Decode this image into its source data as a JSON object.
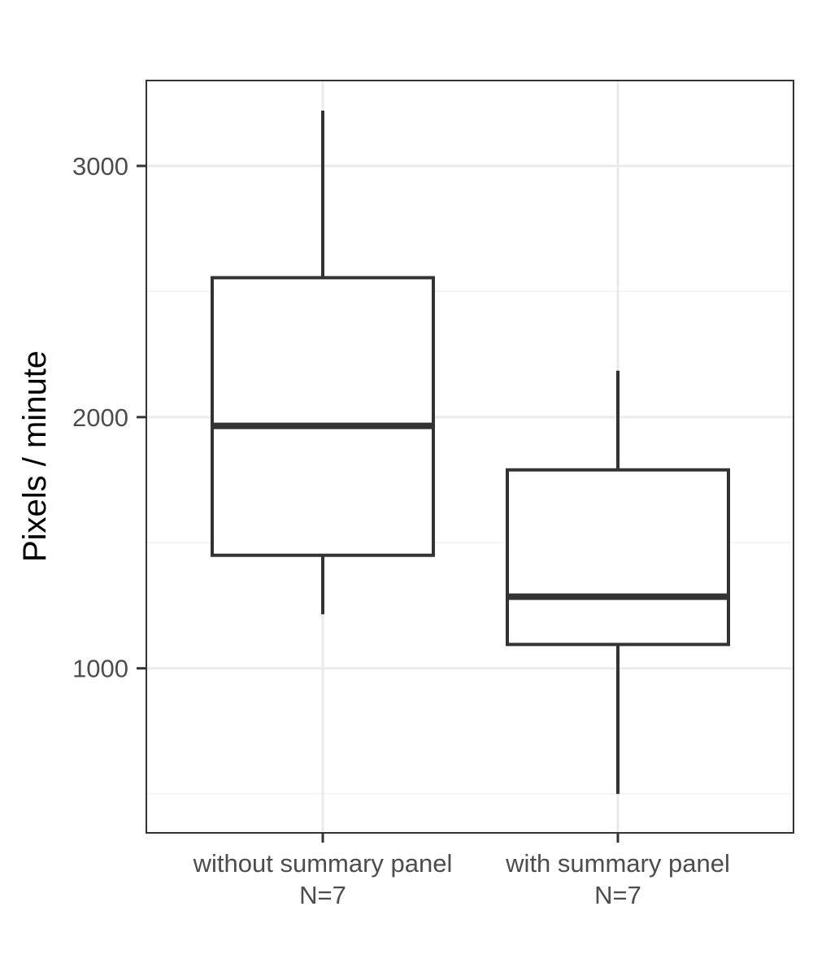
{
  "chart_data": {
    "type": "boxplot",
    "title": "",
    "xlabel": "",
    "ylabel": "Pixels / minute",
    "ylim": [
      345,
      3340
    ],
    "y_major_ticks": [
      1000,
      2000,
      3000
    ],
    "y_minor_ticks": [
      500,
      1500,
      2500
    ],
    "grid": true,
    "categories": [
      {
        "label": "without summary panel",
        "n_label": "N=7"
      },
      {
        "label": "with summary panel",
        "n_label": "N=7"
      }
    ],
    "series": [
      {
        "category": "without summary panel",
        "whisker_low": 1215,
        "q1": 1450,
        "median": 1965,
        "q3": 2555,
        "whisker_high": 3220
      },
      {
        "category": "with summary panel",
        "whisker_low": 500,
        "q1": 1095,
        "median": 1285,
        "q3": 1790,
        "whisker_high": 2185
      }
    ],
    "colors": {
      "box_stroke": "#333333",
      "box_fill": "#ffffff",
      "grid_major": "#ebebeb",
      "grid_minor": "#f2f2f2",
      "panel_border": "#333333",
      "tick_text": "#4d4d4d",
      "axis_title": "#000000"
    }
  }
}
